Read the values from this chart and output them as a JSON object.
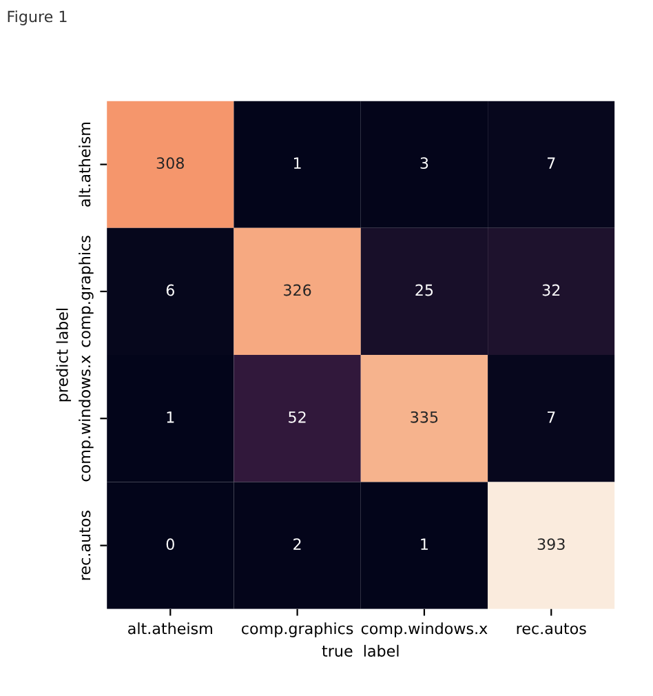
{
  "chart_data": {
    "type": "heatmap",
    "xlabel": "true  label",
    "ylabel": "predict label",
    "annotations": [
      "Figure 1"
    ],
    "categories": [
      "alt.atheism",
      "comp.graphics",
      "comp.windows.x",
      "rec.autos"
    ],
    "y_categories": [
      "alt.atheism",
      "comp.graphics",
      "comp.windows.x",
      "rec.autos"
    ],
    "cells": [
      [
        308,
        1,
        3,
        7
      ],
      [
        6,
        326,
        25,
        32
      ],
      [
        1,
        52,
        335,
        7
      ],
      [
        0,
        2,
        1,
        393
      ]
    ],
    "data_labels": true
  }
}
